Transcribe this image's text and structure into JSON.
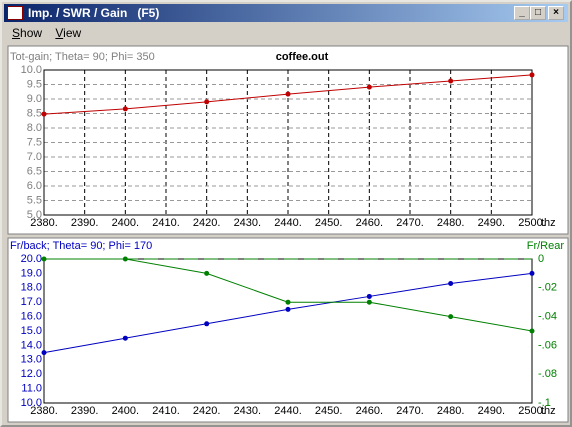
{
  "window": {
    "title": "Imp. / SWR / Gain   (F5)",
    "menu": [
      "Show",
      "View"
    ]
  },
  "chart_data": [
    {
      "type": "line",
      "title": "coffee.out",
      "ylabel": "Tot-gain; Theta= 90; Phi= 350",
      "xlabel": "thz",
      "x": [
        2380,
        2400,
        2420,
        2440,
        2460,
        2480,
        2500
      ],
      "xlim": [
        2380,
        2500
      ],
      "xticks": [
        {
          "value": 2380,
          "label": "2380."
        },
        {
          "value": 2390,
          "label": "2390."
        },
        {
          "value": 2400,
          "label": "2400."
        },
        {
          "value": 2410,
          "label": "2410."
        },
        {
          "value": 2420,
          "label": "2420."
        },
        {
          "value": 2430,
          "label": "2430."
        },
        {
          "value": 2440,
          "label": "2440."
        },
        {
          "value": 2450,
          "label": "2450."
        },
        {
          "value": 2460,
          "label": "2460."
        },
        {
          "value": 2470,
          "label": "2470."
        },
        {
          "value": 2480,
          "label": "2480."
        },
        {
          "value": 2490,
          "label": "2490."
        },
        {
          "value": 2500,
          "label": "2500."
        }
      ],
      "ylim": [
        5,
        10
      ],
      "yticks": [
        {
          "value": 10,
          "label": "10.0"
        },
        {
          "value": 9.5,
          "label": "9.5"
        },
        {
          "value": 9,
          "label": "9.0"
        },
        {
          "value": 8.5,
          "label": "8.5"
        },
        {
          "value": 8,
          "label": "8.0"
        },
        {
          "value": 7.5,
          "label": "7.5"
        },
        {
          "value": 7,
          "label": "7.0"
        },
        {
          "value": 6.5,
          "label": "6.5"
        },
        {
          "value": 6,
          "label": "6.0"
        },
        {
          "value": 5.5,
          "label": "5.5"
        },
        {
          "value": 5,
          "label": "5.0"
        }
      ],
      "grid": true,
      "series": [
        {
          "color": "#c00000",
          "values": [
            8.48,
            8.66,
            8.9,
            9.17,
            9.41,
            9.62,
            9.83
          ]
        }
      ]
    },
    {
      "type": "line",
      "ylabel": "Fr/back; Theta= 90; Phi= 170",
      "y2label": "Fr/Rear",
      "xlabel": "thz",
      "x": [
        2380,
        2400,
        2420,
        2440,
        2460,
        2480,
        2500
      ],
      "xlim": [
        2380,
        2500
      ],
      "xticks": [
        {
          "value": 2380,
          "label": "2380."
        },
        {
          "value": 2390,
          "label": "2390."
        },
        {
          "value": 2400,
          "label": "2400."
        },
        {
          "value": 2410,
          "label": "2410."
        },
        {
          "value": 2420,
          "label": "2420."
        },
        {
          "value": 2430,
          "label": "2430."
        },
        {
          "value": 2440,
          "label": "2440."
        },
        {
          "value": 2450,
          "label": "2450."
        },
        {
          "value": 2460,
          "label": "2460."
        },
        {
          "value": 2470,
          "label": "2470."
        },
        {
          "value": 2480,
          "label": "2480."
        },
        {
          "value": 2490,
          "label": "2490."
        },
        {
          "value": 2500,
          "label": "2500."
        }
      ],
      "ylim": [
        10,
        20
      ],
      "yticks": [
        {
          "value": 20,
          "label": "20.0"
        },
        {
          "value": 19,
          "label": "19.0"
        },
        {
          "value": 18,
          "label": "18.0"
        },
        {
          "value": 17,
          "label": "17.0"
        },
        {
          "value": 16,
          "label": "16.0"
        },
        {
          "value": 15,
          "label": "15.0"
        },
        {
          "value": 14,
          "label": "14.0"
        },
        {
          "value": 13,
          "label": "13.0"
        },
        {
          "value": 12,
          "label": "12.0"
        },
        {
          "value": 11,
          "label": "11.0"
        },
        {
          "value": 10,
          "label": "10.0"
        }
      ],
      "y2lim": [
        -0.1,
        0
      ],
      "y2ticks": [
        0,
        {
          "value": -0.02,
          "label": "-.02"
        },
        {
          "value": -0.04,
          "label": "-.04"
        },
        {
          "value": -0.06,
          "label": "-.06"
        },
        {
          "value": -0.08,
          "label": "-.08"
        },
        {
          "value": -0.1,
          "label": "-.1"
        }
      ],
      "grid": false,
      "series": [
        {
          "color": "#0000c0",
          "values": [
            13.5,
            14.5,
            15.5,
            16.5,
            17.4,
            18.3,
            19.0
          ]
        },
        {
          "color": "#008000",
          "axis": "y2",
          "values": [
            0,
            0,
            -0.01,
            -0.03,
            -0.03,
            -0.04,
            -0.05
          ]
        }
      ]
    }
  ]
}
